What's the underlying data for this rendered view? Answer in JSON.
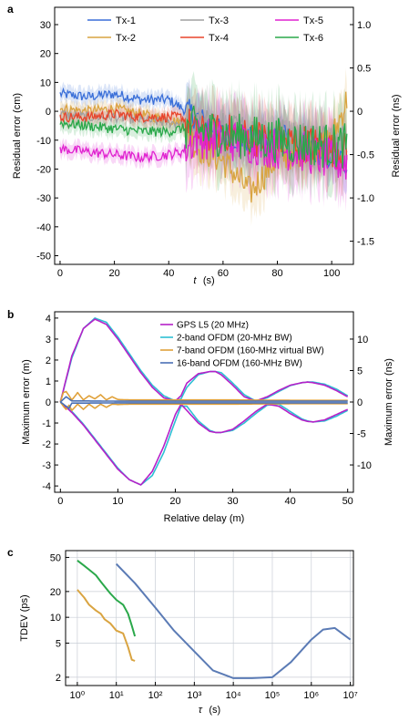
{
  "panels": [
    {
      "letter": "a",
      "chart_data": {
        "type": "line",
        "xlabel_var": "t",
        "xlabel_unit": "(s)",
        "ylabel": "Residual error (cm)",
        "ylabel_right": "Residual error (ns)",
        "xlim": [
          -2,
          108
        ],
        "ylim": [
          -53,
          36
        ],
        "ylim_right_ns": [
          -1.767,
          1.2
        ],
        "x_ticks": [
          0,
          20,
          40,
          60,
          80,
          100
        ],
        "y_ticks": [
          -50,
          -40,
          -30,
          -20,
          -10,
          0,
          10,
          20,
          30
        ],
        "y_right_ticks": [
          "1.0",
          "0.5",
          "0",
          "-0.5",
          "-1.0",
          "-1.5"
        ],
        "y_right_values": [
          1.0,
          0.5,
          0,
          -0.5,
          -1.0,
          -1.5
        ],
        "grid": false,
        "legend_position": "top, 3 columns",
        "series": [
          {
            "name": "Tx-1",
            "color": "#3a6fd8",
            "x": [
              0,
              10,
              20,
              30,
              40,
              45,
              50,
              60,
              70,
              80,
              90,
              100,
              106
            ],
            "y": [
              6,
              5,
              6,
              4,
              4,
              1,
              -2,
              -8,
              -10,
              -8,
              -12,
              -16,
              -18
            ]
          },
          {
            "name": "Tx-2",
            "color": "#d9a441",
            "x": [
              0,
              10,
              20,
              30,
              40,
              45,
              50,
              60,
              70,
              80,
              90,
              100,
              106
            ],
            "y": [
              1,
              0,
              1,
              -1,
              -3,
              -4,
              -12,
              -17,
              -28,
              -16,
              -14,
              -10,
              5
            ]
          },
          {
            "name": "Tx-3",
            "color": "#a0a0a0",
            "x": [
              0,
              10,
              20,
              30,
              40,
              45,
              50,
              60,
              70,
              80,
              90,
              100,
              106
            ],
            "y": [
              -1,
              -2,
              -2,
              -3,
              -4,
              -4,
              -5,
              -6,
              -7,
              -8,
              -9,
              -10,
              -9
            ]
          },
          {
            "name": "Tx-4",
            "color": "#e8452c",
            "x": [
              0,
              10,
              20,
              30,
              40,
              45,
              50,
              60,
              70,
              80,
              90,
              100,
              106
            ],
            "y": [
              -2,
              -2,
              -1,
              -2,
              -2,
              -2,
              -8,
              -7,
              -9,
              -10,
              -11,
              -13,
              -14
            ]
          },
          {
            "name": "Tx-5",
            "color": "#e022d0",
            "x": [
              0,
              10,
              20,
              30,
              40,
              45,
              50,
              60,
              70,
              80,
              90,
              100,
              106
            ],
            "y": [
              -13,
              -14,
              -15,
              -16,
              -15,
              -14,
              -9,
              -10,
              -11,
              -13,
              -14,
              -17,
              -18
            ]
          },
          {
            "name": "Tx-6",
            "color": "#2aa84a",
            "x": [
              0,
              10,
              20,
              30,
              40,
              45,
              50,
              60,
              70,
              80,
              90,
              100,
              106
            ],
            "y": [
              -4,
              -5,
              -6,
              -7,
              -7,
              -6,
              -6,
              -8,
              -9,
              -10,
              -11,
              -12,
              -12
            ]
          }
        ]
      }
    },
    {
      "letter": "b",
      "chart_data": {
        "type": "line",
        "xlabel": "Relative delay (m)",
        "ylabel": "Maximum error (m)",
        "ylabel_right": "Maximum error (ns)",
        "xlim": [
          -1,
          51
        ],
        "ylim": [
          -4.3,
          4.3
        ],
        "ylim_right_ns": [
          -14.34,
          14.34
        ],
        "x_ticks": [
          0,
          10,
          20,
          30,
          40,
          50
        ],
        "y_ticks": [
          -4,
          -3,
          -2,
          -1,
          0,
          1,
          2,
          3,
          4
        ],
        "y_right_ticks": [
          "10",
          "5",
          "0",
          "-5",
          "-10"
        ],
        "y_right_values": [
          10,
          5,
          0,
          -5,
          -10
        ],
        "grid": false,
        "legend_position": "top-right",
        "series": [
          {
            "name": "GPS L5 (20 MHz)",
            "color": "#b620c8",
            "x": [
              0,
              2,
              4,
              6,
              8,
              10,
              12,
              14,
              16,
              18,
              20,
              21,
              22,
              24,
              26,
              27,
              28,
              30,
              32,
              34,
              36,
              38,
              40,
              42,
              43,
              44,
              46,
              48,
              50
            ],
            "upper": [
              0,
              2.2,
              3.5,
              3.95,
              3.7,
              3.0,
              2.2,
              1.4,
              0.7,
              0.2,
              0.05,
              0.3,
              0.9,
              1.35,
              1.45,
              1.45,
              1.3,
              0.8,
              0.25,
              0.05,
              0.25,
              0.55,
              0.8,
              0.92,
              0.95,
              0.92,
              0.8,
              0.55,
              0.25
            ],
            "lower": [
              0,
              -0.5,
              -1.1,
              -1.8,
              -2.5,
              -3.2,
              -3.7,
              -3.95,
              -3.3,
              -2.1,
              -0.6,
              -0.1,
              -0.4,
              -1.0,
              -1.4,
              -1.45,
              -1.45,
              -1.3,
              -0.9,
              -0.45,
              -0.1,
              -0.2,
              -0.55,
              -0.85,
              -0.92,
              -0.95,
              -0.85,
              -0.6,
              -0.35
            ]
          },
          {
            "name": "2-band OFDM (20-MHz BW)",
            "color": "#2ebfd4",
            "x": [
              0,
              2,
              4,
              6,
              8,
              10,
              12,
              14,
              16,
              18,
              20,
              21,
              22,
              24,
              26,
              27,
              28,
              30,
              32,
              34,
              36,
              38,
              40,
              42,
              43,
              44,
              46,
              48,
              50
            ],
            "upper": [
              0,
              2.1,
              3.5,
              4.0,
              3.8,
              3.1,
              2.3,
              1.5,
              0.8,
              0.3,
              0.05,
              0.15,
              0.7,
              1.3,
              1.45,
              1.45,
              1.4,
              0.9,
              0.35,
              0.05,
              0.2,
              0.5,
              0.78,
              0.92,
              0.95,
              0.95,
              0.85,
              0.62,
              0.3
            ],
            "lower": [
              0,
              -0.45,
              -1.05,
              -1.75,
              -2.45,
              -3.15,
              -3.7,
              -3.95,
              -3.5,
              -2.4,
              -0.9,
              -0.2,
              -0.2,
              -0.9,
              -1.35,
              -1.45,
              -1.45,
              -1.35,
              -1.0,
              -0.55,
              -0.15,
              -0.1,
              -0.45,
              -0.8,
              -0.9,
              -0.95,
              -0.9,
              -0.68,
              -0.4
            ]
          },
          {
            "name": "7-band OFDM (160-MHz virtual BW)",
            "color": "#e0a13a",
            "x": [
              0,
              0.5,
              1,
              1.5,
              2,
              3,
              4,
              5,
              6,
              7,
              8,
              9,
              10,
              12,
              16,
              20,
              30,
              40,
              50
            ],
            "upper": [
              0,
              0.45,
              0.5,
              0.3,
              0.1,
              0.45,
              0.1,
              0.3,
              0.15,
              0.35,
              0.1,
              0.25,
              0.12,
              0.1,
              0.1,
              0.1,
              0.1,
              0.08,
              0.08
            ],
            "lower": [
              0,
              -0.2,
              -0.35,
              -0.15,
              -0.4,
              -0.1,
              -0.35,
              -0.1,
              -0.3,
              -0.1,
              -0.25,
              -0.1,
              -0.12,
              -0.1,
              -0.1,
              -0.1,
              -0.1,
              -0.08,
              -0.08
            ]
          },
          {
            "name": "16-band OFDM (160-MHz BW)",
            "color": "#4a70b5",
            "x": [
              0,
              1,
              1.5,
              2,
              3,
              5,
              10,
              20,
              30,
              40,
              50
            ],
            "upper": [
              0,
              0.25,
              0.15,
              0.05,
              0.05,
              0.05,
              0.04,
              0.04,
              0.04,
              0.04,
              0.04
            ],
            "lower": [
              0,
              -0.2,
              -0.3,
              -0.05,
              -0.05,
              -0.05,
              -0.04,
              -0.04,
              -0.04,
              -0.04,
              -0.04
            ]
          }
        ]
      }
    },
    {
      "letter": "c",
      "chart_data": {
        "type": "line",
        "xscale": "log",
        "yscale": "log",
        "xlabel_var": "τ",
        "xlabel_unit": "(s)",
        "ylabel": "TDEV (ps)",
        "xlim": [
          0.5,
          12000000
        ],
        "ylim": [
          1.6,
          60
        ],
        "x_ticks": [
          "10⁰",
          "10¹",
          "10²",
          "10³",
          "10⁴",
          "10⁵",
          "10⁶",
          "10⁷"
        ],
        "x_tick_values": [
          1,
          10,
          100,
          1000,
          10000,
          100000,
          1000000,
          10000000
        ],
        "y_ticks": [
          "2",
          "5",
          "10",
          "20",
          "50"
        ],
        "y_tick_values": [
          2,
          5,
          10,
          20,
          50
        ],
        "grid": true,
        "series": [
          {
            "color": "#2aa84a",
            "x": [
              1,
              1.5,
              2,
              3,
              4,
              5,
              7,
              10,
              15,
              20,
              25,
              30
            ],
            "y": [
              46,
              40,
              36,
              31,
              26,
              23,
              19,
              16,
              14,
              11,
              8,
              6
            ]
          },
          {
            "color": "#d9a441",
            "x": [
              1,
              1.5,
              2,
              3,
              4,
              5,
              7,
              10,
              15,
              20,
              25,
              30
            ],
            "y": [
              21,
              17,
              14,
              12,
              11,
              9.5,
              8.5,
              7,
              6.5,
              4.5,
              3.2,
              3.1
            ]
          },
          {
            "color": "#5b7bb5",
            "x": [
              10,
              30,
              100,
              300,
              1000,
              3000,
              10000,
              30000,
              100000,
              300000,
              1000000,
              2000000,
              4000000,
              10000000
            ],
            "y": [
              42,
              25,
              13,
              7,
              4,
              2.4,
              1.95,
              1.95,
              2,
              3,
              5.5,
              7.2,
              7.5,
              5.5
            ]
          }
        ]
      }
    }
  ]
}
